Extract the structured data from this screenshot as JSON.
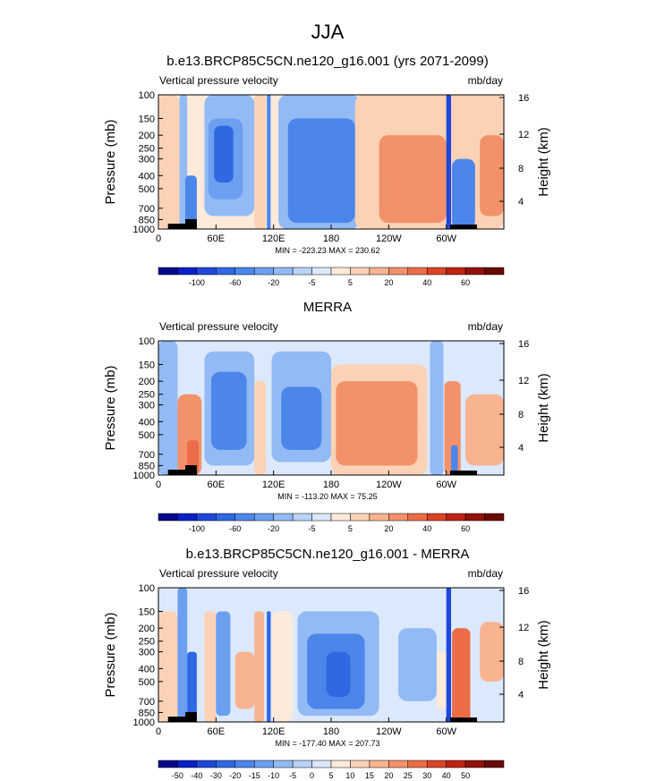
{
  "figure": {
    "title": "JJA"
  },
  "palette": {
    "colors": [
      "#08088c",
      "#0b20c8",
      "#1f48da",
      "#2f68e2",
      "#4c86ea",
      "#6c9ff0",
      "#92baf4",
      "#b8d2f8",
      "#dce8fb",
      "#fdeadb",
      "#fbd2b6",
      "#f8b390",
      "#f3916a",
      "#ec6c47",
      "#dc4327",
      "#bd2313",
      "#921108",
      "#6a0a05"
    ]
  },
  "chart_data": [
    {
      "type": "heatmap",
      "title": "b.e13.BRCP85C5CN.ne120_g16.001 (yrs 2071-2099)",
      "left_label": "Vertical pressure velocity",
      "units": "mb/day",
      "ylabel": "Pressure (mb)",
      "ylabel_right": "Height (km)",
      "x_range": [
        0,
        360
      ],
      "x_ticks": [
        "0",
        "60E",
        "120E",
        "180",
        "120W",
        "60W"
      ],
      "y_ticks": [
        "100",
        "150",
        "200",
        "250",
        "300",
        "400",
        "500",
        "700",
        "850",
        "1000"
      ],
      "y_ticks_right": [
        "16",
        "12",
        "8",
        "4"
      ],
      "stats": "MIN = -223.23  MAX = 230.62",
      "colorbar_labels": [
        "-100",
        "-60",
        "-20",
        "-5",
        "5",
        "20",
        "40",
        "60"
      ],
      "regions": [
        {
          "lon": [
            0,
            22
          ],
          "p": [
            100,
            1000
          ],
          "value": 3
        },
        {
          "lon": [
            22,
            30
          ],
          "p": [
            100,
            1000
          ],
          "value": -8
        },
        {
          "lon": [
            28,
            40
          ],
          "p": [
            400,
            1000
          ],
          "value": -30
        },
        {
          "lon": [
            48,
            100
          ],
          "p": [
            100,
            800
          ],
          "value": -8
        },
        {
          "lon": [
            52,
            88
          ],
          "p": [
            150,
            600
          ],
          "value": -20
        },
        {
          "lon": [
            58,
            78
          ],
          "p": [
            170,
            450
          ],
          "value": -50
        },
        {
          "lon": [
            100,
            112
          ],
          "p": [
            100,
            1000
          ],
          "value": 3
        },
        {
          "lon": [
            113,
            117
          ],
          "p": [
            100,
            1000
          ],
          "value": -25
        },
        {
          "lon": [
            125,
            210
          ],
          "p": [
            100,
            1000
          ],
          "value": -6
        },
        {
          "lon": [
            135,
            205
          ],
          "p": [
            150,
            900
          ],
          "value": -22
        },
        {
          "lon": [
            150,
            200
          ],
          "p": [
            220,
            800
          ],
          "value": -30
        },
        {
          "lon": [
            205,
            360
          ],
          "p": [
            100,
            1000
          ],
          "value": 3
        },
        {
          "lon": [
            230,
            300
          ],
          "p": [
            200,
            900
          ],
          "value": 10
        },
        {
          "lon": [
            245,
            290
          ],
          "p": [
            300,
            800
          ],
          "value": 18
        },
        {
          "lon": [
            300,
            305
          ],
          "p": [
            100,
            1000
          ],
          "value": -70
        },
        {
          "lon": [
            306,
            330
          ],
          "p": [
            300,
            1000
          ],
          "value": -25
        },
        {
          "lon": [
            335,
            360
          ],
          "p": [
            200,
            800
          ],
          "value": 15
        }
      ]
    },
    {
      "type": "heatmap",
      "title": "MERRA",
      "left_label": "Vertical pressure velocity",
      "units": "mb/day",
      "ylabel": "Pressure (mb)",
      "ylabel_right": "Height (km)",
      "x_range": [
        0,
        360
      ],
      "x_ticks": [
        "0",
        "60E",
        "120E",
        "180",
        "120W",
        "60W"
      ],
      "y_ticks": [
        "100",
        "150",
        "200",
        "250",
        "300",
        "400",
        "500",
        "700",
        "850",
        "1000"
      ],
      "y_ticks_right": [
        "16",
        "12",
        "8",
        "4"
      ],
      "stats": "MIN = -113.20  MAX =  75.25",
      "colorbar_labels": [
        "-100",
        "-60",
        "-20",
        "-5",
        "5",
        "20",
        "40",
        "60"
      ],
      "regions": [
        {
          "lon": [
            0,
            20
          ],
          "p": [
            100,
            1000
          ],
          "value": -6
        },
        {
          "lon": [
            20,
            45
          ],
          "p": [
            250,
            1000
          ],
          "value": 10
        },
        {
          "lon": [
            30,
            42
          ],
          "p": [
            550,
            1000
          ],
          "value": 25
        },
        {
          "lon": [
            48,
            100
          ],
          "p": [
            120,
            850
          ],
          "value": -8
        },
        {
          "lon": [
            55,
            92
          ],
          "p": [
            170,
            650
          ],
          "value": -25
        },
        {
          "lon": [
            100,
            112
          ],
          "p": [
            200,
            1000
          ],
          "value": 3
        },
        {
          "lon": [
            118,
            180
          ],
          "p": [
            120,
            800
          ],
          "value": -8
        },
        {
          "lon": [
            128,
            170
          ],
          "p": [
            220,
            650
          ],
          "value": -25
        },
        {
          "lon": [
            180,
            280
          ],
          "p": [
            150,
            1000
          ],
          "value": 3
        },
        {
          "lon": [
            185,
            270
          ],
          "p": [
            200,
            850
          ],
          "value": 10
        },
        {
          "lon": [
            230,
            270
          ],
          "p": [
            400,
            600
          ],
          "value": 18
        },
        {
          "lon": [
            283,
            297
          ],
          "p": [
            100,
            1000
          ],
          "value": -8
        },
        {
          "lon": [
            298,
            315
          ],
          "p": [
            200,
            1000
          ],
          "value": 15
        },
        {
          "lon": [
            305,
            312
          ],
          "p": [
            600,
            1000
          ],
          "value": -35
        },
        {
          "lon": [
            320,
            360
          ],
          "p": [
            250,
            850
          ],
          "value": 8
        }
      ]
    },
    {
      "type": "heatmap",
      "title": "b.e13.BRCP85C5CN.ne120_g16.001 - MERRA",
      "left_label": "Vertical pressure velocity",
      "units": "mb/day",
      "ylabel": "Pressure (mb)",
      "ylabel_right": "Height (km)",
      "x_range": [
        0,
        360
      ],
      "x_ticks": [
        "0",
        "60E",
        "120E",
        "180",
        "120W",
        "60W"
      ],
      "y_ticks": [
        "100",
        "150",
        "200",
        "250",
        "300",
        "400",
        "500",
        "700",
        "850",
        "1000"
      ],
      "y_ticks_right": [
        "16",
        "12",
        "8",
        "4"
      ],
      "stats": "MIN = -177.40  MAX = 207.73",
      "colorbar_labels": [
        "-50",
        "-40",
        "-30",
        "-20",
        "-15",
        "-10",
        "-5",
        "0",
        "5",
        "10",
        "15",
        "20",
        "25",
        "30",
        "40",
        "50"
      ],
      "regions": [
        {
          "lon": [
            0,
            20
          ],
          "p": [
            150,
            1000
          ],
          "value": 12
        },
        {
          "lon": [
            20,
            30
          ],
          "p": [
            100,
            1000
          ],
          "value": -12
        },
        {
          "lon": [
            30,
            40
          ],
          "p": [
            300,
            1000
          ],
          "value": -28
        },
        {
          "lon": [
            48,
            60
          ],
          "p": [
            150,
            1000
          ],
          "value": 10
        },
        {
          "lon": [
            60,
            75
          ],
          "p": [
            150,
            900
          ],
          "value": -12
        },
        {
          "lon": [
            80,
            100
          ],
          "p": [
            300,
            800
          ],
          "value": 18
        },
        {
          "lon": [
            100,
            110
          ],
          "p": [
            150,
            1000
          ],
          "value": 15
        },
        {
          "lon": [
            113,
            117
          ],
          "p": [
            150,
            1000
          ],
          "value": -25
        },
        {
          "lon": [
            118,
            140
          ],
          "p": [
            150,
            1000
          ],
          "value": 8
        },
        {
          "lon": [
            145,
            230
          ],
          "p": [
            150,
            900
          ],
          "value": -8
        },
        {
          "lon": [
            155,
            215
          ],
          "p": [
            220,
            800
          ],
          "value": -20
        },
        {
          "lon": [
            175,
            200
          ],
          "p": [
            300,
            650
          ],
          "value": -30
        },
        {
          "lon": [
            250,
            290
          ],
          "p": [
            200,
            700
          ],
          "value": -6
        },
        {
          "lon": [
            290,
            300
          ],
          "p": [
            300,
            800
          ],
          "value": 8
        },
        {
          "lon": [
            300,
            305
          ],
          "p": [
            100,
            1000
          ],
          "value": -40
        },
        {
          "lon": [
            306,
            325
          ],
          "p": [
            200,
            1000
          ],
          "value": 25
        },
        {
          "lon": [
            335,
            360
          ],
          "p": [
            180,
            500
          ],
          "value": 15
        }
      ]
    }
  ]
}
